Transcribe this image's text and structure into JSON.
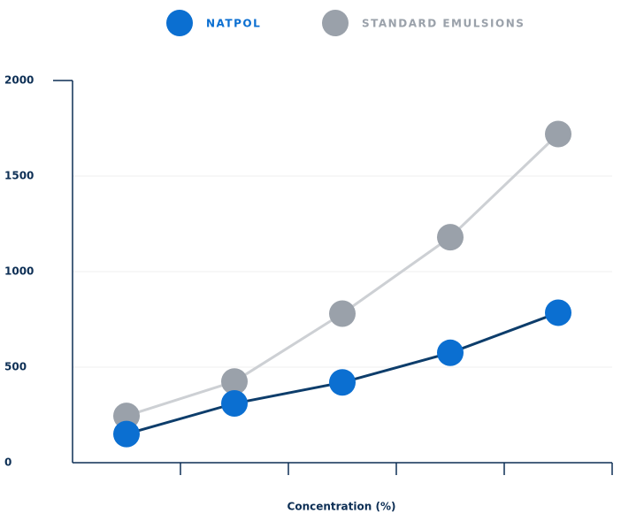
{
  "chart_data": {
    "type": "line",
    "x_label": "Concentration (%)",
    "categories": [
      null,
      null,
      null,
      null,
      null
    ],
    "series": [
      {
        "name": "NATPOL",
        "color": "#0b6fd1",
        "line_color": "#0d3d6b",
        "values": [
          150,
          310,
          420,
          575,
          785
        ]
      },
      {
        "name": "STANDARD EMULSIONS",
        "color": "#9aa1aa",
        "line_color": "#cdd0d4",
        "values": [
          245,
          425,
          780,
          1180,
          1720
        ]
      }
    ],
    "ylim": [
      0,
      2000
    ],
    "yticks": [
      0,
      500,
      1000,
      1500,
      2000
    ],
    "grid": true
  }
}
